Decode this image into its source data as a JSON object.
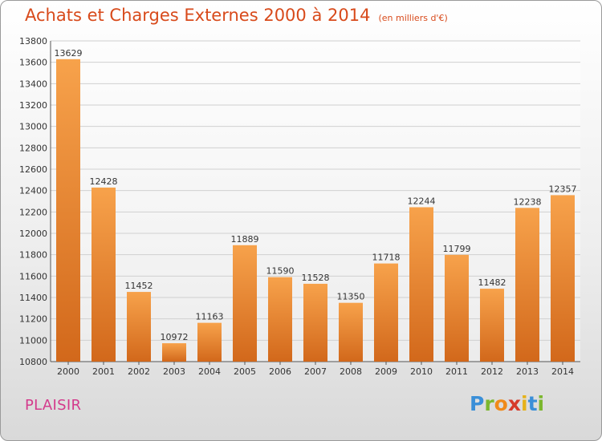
{
  "title": "Achats et Charges Externes 2000 à 2014",
  "unit": "(en milliers d'€)",
  "city": "PLAISIR",
  "logo": {
    "text": "Proxiti",
    "letters": [
      {
        "ch": "P",
        "color": "#3a8fd8"
      },
      {
        "ch": "r",
        "color": "#7bb72e"
      },
      {
        "ch": "o",
        "color": "#f08a1a"
      },
      {
        "ch": "x",
        "color": "#d63a2a"
      },
      {
        "ch": "i",
        "color": "#e6b21a"
      },
      {
        "ch": "t",
        "color": "#3a8fd8"
      },
      {
        "ch": "i",
        "color": "#7bb72e"
      }
    ]
  },
  "colors": {
    "bar_light": "#f7a24b",
    "bar_dark": "#d2681b",
    "title": "#d84a1b",
    "city": "#d43a8c"
  },
  "chart_data": {
    "type": "bar",
    "categories": [
      "2000",
      "2001",
      "2002",
      "2003",
      "2004",
      "2005",
      "2006",
      "2007",
      "2008",
      "2009",
      "2010",
      "2011",
      "2012",
      "2013",
      "2014"
    ],
    "values": [
      13629,
      12428,
      11452,
      10972,
      11163,
      11889,
      11590,
      11528,
      11350,
      11718,
      12244,
      11799,
      11482,
      12238,
      12357
    ],
    "ylim": [
      10800,
      13800
    ],
    "yticks": [
      10800,
      11000,
      11200,
      11400,
      11600,
      11800,
      12000,
      12200,
      12400,
      12600,
      12800,
      13000,
      13200,
      13400,
      13600,
      13800
    ],
    "grid": true
  }
}
